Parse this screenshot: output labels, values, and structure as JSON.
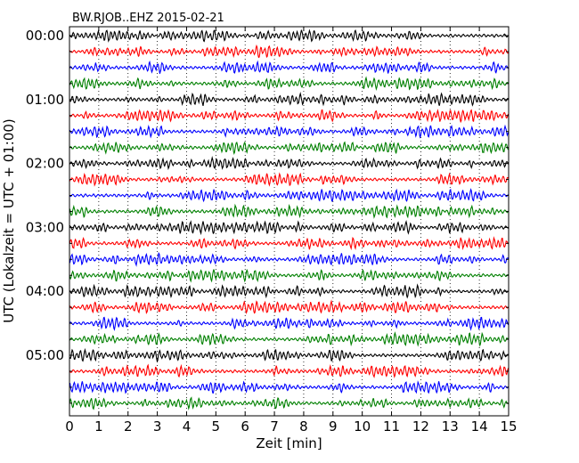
{
  "chart_data": {
    "type": "line",
    "title": "BW.RJOB..EHZ 2015-02-21",
    "xlabel": "Zeit  [min]",
    "ylabel": "UTC (Lokalzeit = UTC + 01:00)",
    "xlim": [
      0,
      15
    ],
    "x_ticks": [
      0,
      1,
      2,
      3,
      4,
      5,
      6,
      7,
      8,
      9,
      10,
      11,
      12,
      13,
      14,
      15
    ],
    "x_tick_labels": [
      "0",
      "1",
      "2",
      "3",
      "4",
      "5",
      "6",
      "7",
      "8",
      "9",
      "10",
      "11",
      "12",
      "13",
      "14",
      "15"
    ],
    "y_tick_labels": [
      "00:00",
      "01:00",
      "02:00",
      "03:00",
      "04:00",
      "05:00"
    ],
    "minutes_per_trace": 15,
    "grid": "vertical dotted",
    "colors": [
      "#000000",
      "#ff0000",
      "#0000ff",
      "#008000"
    ],
    "series": [
      {
        "values": [
          "00:00"
        ]
      },
      {
        "values": [
          "00:15"
        ]
      },
      {
        "values": [
          "00:30"
        ]
      },
      {
        "values": [
          "00:45"
        ]
      },
      {
        "values": [
          "01:00"
        ]
      },
      {
        "values": [
          "01:15"
        ]
      },
      {
        "values": [
          "01:30"
        ]
      },
      {
        "values": [
          "01:45"
        ]
      },
      {
        "values": [
          "02:00"
        ]
      },
      {
        "values": [
          "02:15"
        ]
      },
      {
        "values": [
          "02:30"
        ]
      },
      {
        "values": [
          "02:45"
        ]
      },
      {
        "values": [
          "03:00"
        ]
      },
      {
        "values": [
          "03:15"
        ]
      },
      {
        "values": [
          "03:30"
        ]
      },
      {
        "values": [
          "03:45"
        ]
      },
      {
        "values": [
          "04:00"
        ]
      },
      {
        "values": [
          "04:15"
        ]
      },
      {
        "values": [
          "04:30"
        ]
      },
      {
        "values": [
          "04:45"
        ]
      },
      {
        "values": [
          "05:00"
        ]
      },
      {
        "values": [
          "05:15"
        ]
      },
      {
        "values": [
          "05:30"
        ]
      },
      {
        "values": [
          "05:45"
        ]
      }
    ]
  }
}
